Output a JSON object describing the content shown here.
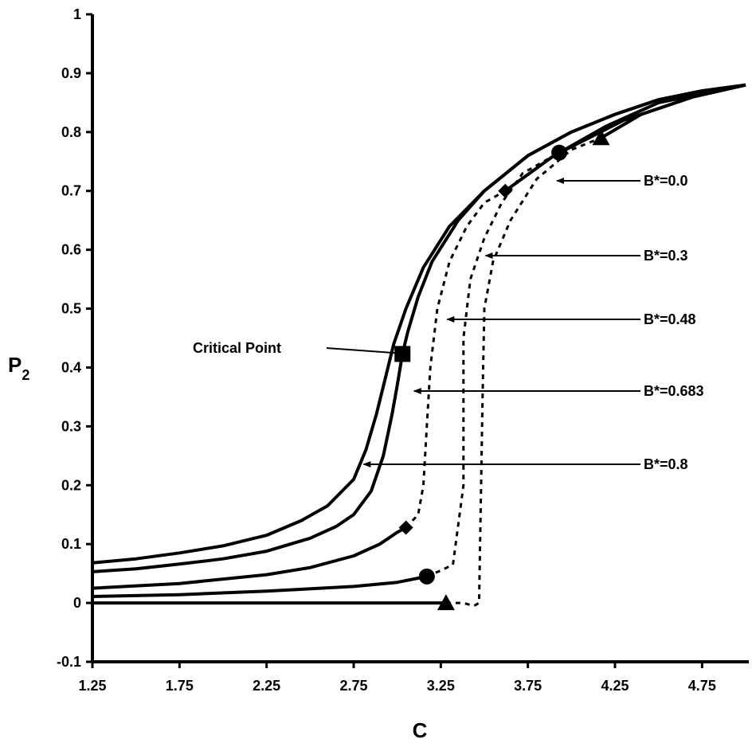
{
  "chart_data": {
    "type": "line",
    "title": "",
    "xlabel": "C",
    "ylabel_main": "P",
    "ylabel_sub": "2",
    "xlim": [
      1.25,
      5.0
    ],
    "ylim": [
      -0.1,
      1.0
    ],
    "xticks": [
      "1.25",
      "1.75",
      "2.25",
      "2.75",
      "3.25",
      "3.75",
      "4.25",
      "4.75"
    ],
    "xtick_values": [
      1.25,
      1.75,
      2.25,
      2.75,
      3.25,
      3.75,
      4.25,
      4.75
    ],
    "yticks": [
      "-0.1",
      "0",
      "0.1",
      "0.2",
      "0.3",
      "0.4",
      "0.5",
      "0.6",
      "0.7",
      "0.8",
      "0.9",
      "1"
    ],
    "ytick_values": [
      -0.1,
      0.0,
      0.1,
      0.2,
      0.3,
      0.4,
      0.5,
      0.6,
      0.7,
      0.8,
      0.9,
      1.0
    ],
    "grid": false,
    "series": [
      {
        "name": "B*=0.0",
        "marker": "triangle",
        "stable": [
          [
            1.25,
            0.0
          ],
          [
            3.28,
            0.0
          ]
        ],
        "unstable": [
          [
            3.28,
            0.0
          ],
          [
            3.38,
            0.0
          ],
          [
            3.44,
            -0.005
          ],
          [
            3.47,
            0.0
          ],
          [
            3.49,
            0.35
          ],
          [
            3.5,
            0.5
          ],
          [
            3.55,
            0.58
          ],
          [
            3.65,
            0.65
          ],
          [
            3.8,
            0.72
          ],
          [
            4.0,
            0.77
          ],
          [
            4.17,
            0.79
          ]
        ],
        "upper": [
          [
            4.17,
            0.79
          ],
          [
            4.4,
            0.83
          ],
          [
            4.7,
            0.86
          ],
          [
            5.0,
            0.88
          ]
        ],
        "marker_points": [
          [
            3.28,
            0.0
          ],
          [
            4.17,
            0.79
          ]
        ]
      },
      {
        "name": "B*=0.3",
        "marker": "circle",
        "stable": [
          [
            1.25,
            0.011
          ],
          [
            1.75,
            0.014
          ],
          [
            2.25,
            0.02
          ],
          [
            2.75,
            0.028
          ],
          [
            3.0,
            0.035
          ],
          [
            3.17,
            0.045
          ]
        ],
        "unstable": [
          [
            3.17,
            0.045
          ],
          [
            3.25,
            0.055
          ],
          [
            3.32,
            0.065
          ],
          [
            3.38,
            0.2
          ],
          [
            3.38,
            0.45
          ],
          [
            3.42,
            0.55
          ],
          [
            3.5,
            0.62
          ],
          [
            3.6,
            0.68
          ],
          [
            3.72,
            0.73
          ],
          [
            3.93,
            0.765
          ]
        ],
        "upper": [
          [
            3.93,
            0.765
          ],
          [
            4.2,
            0.81
          ],
          [
            4.5,
            0.85
          ],
          [
            5.0,
            0.88
          ]
        ],
        "marker_points": [
          [
            3.17,
            0.045
          ],
          [
            3.93,
            0.765
          ]
        ]
      },
      {
        "name": "B*=0.48",
        "marker": "diamond",
        "stable": [
          [
            1.25,
            0.025
          ],
          [
            1.75,
            0.033
          ],
          [
            2.25,
            0.048
          ],
          [
            2.5,
            0.06
          ],
          [
            2.75,
            0.08
          ],
          [
            2.9,
            0.1
          ],
          [
            3.0,
            0.12
          ],
          [
            3.05,
            0.128
          ]
        ],
        "unstable": [
          [
            3.05,
            0.128
          ],
          [
            3.12,
            0.15
          ],
          [
            3.15,
            0.2
          ],
          [
            3.17,
            0.3
          ],
          [
            3.19,
            0.4
          ],
          [
            3.23,
            0.5
          ],
          [
            3.3,
            0.58
          ],
          [
            3.4,
            0.64
          ],
          [
            3.5,
            0.68
          ],
          [
            3.62,
            0.7
          ]
        ],
        "upper": [
          [
            3.62,
            0.7
          ],
          [
            3.9,
            0.76
          ],
          [
            4.3,
            0.82
          ],
          [
            4.7,
            0.86
          ],
          [
            5.0,
            0.88
          ]
        ],
        "marker_points": [
          [
            3.05,
            0.128
          ],
          [
            3.62,
            0.7
          ]
        ]
      },
      {
        "name": "B*=0.683",
        "marker": "square",
        "curve": [
          [
            1.25,
            0.053
          ],
          [
            1.5,
            0.058
          ],
          [
            1.75,
            0.066
          ],
          [
            2.0,
            0.075
          ],
          [
            2.25,
            0.088
          ],
          [
            2.5,
            0.11
          ],
          [
            2.65,
            0.13
          ],
          [
            2.75,
            0.15
          ],
          [
            2.85,
            0.19
          ],
          [
            2.92,
            0.25
          ],
          [
            2.97,
            0.32
          ],
          [
            3.0,
            0.37
          ],
          [
            3.03,
            0.423
          ],
          [
            3.06,
            0.46
          ],
          [
            3.12,
            0.52
          ],
          [
            3.2,
            0.58
          ],
          [
            3.35,
            0.65
          ],
          [
            3.5,
            0.7
          ],
          [
            3.75,
            0.76
          ],
          [
            4.0,
            0.8
          ],
          [
            4.25,
            0.83
          ],
          [
            4.5,
            0.855
          ],
          [
            4.75,
            0.87
          ],
          [
            5.0,
            0.88
          ]
        ],
        "marker_points": [
          [
            3.03,
            0.423
          ]
        ]
      },
      {
        "name": "B*=0.8",
        "curve": [
          [
            1.25,
            0.068
          ],
          [
            1.5,
            0.075
          ],
          [
            1.75,
            0.085
          ],
          [
            2.0,
            0.097
          ],
          [
            2.25,
            0.115
          ],
          [
            2.45,
            0.14
          ],
          [
            2.6,
            0.165
          ],
          [
            2.75,
            0.21
          ],
          [
            2.82,
            0.26
          ],
          [
            2.88,
            0.32
          ],
          [
            2.93,
            0.38
          ],
          [
            2.98,
            0.44
          ],
          [
            3.05,
            0.5
          ],
          [
            3.15,
            0.57
          ],
          [
            3.3,
            0.64
          ],
          [
            3.5,
            0.7
          ],
          [
            3.75,
            0.76
          ],
          [
            4.0,
            0.8
          ],
          [
            4.25,
            0.83
          ],
          [
            4.5,
            0.855
          ],
          [
            4.75,
            0.87
          ],
          [
            5.0,
            0.88
          ]
        ]
      }
    ],
    "annotations": [
      {
        "label": "B*=0.0",
        "arrow_to": [
          3.88,
          0.7
        ]
      },
      {
        "label": "B*=0.3",
        "arrow_to": [
          3.47,
          0.575
        ]
      },
      {
        "label": "B*=0.48",
        "arrow_to": [
          3.25,
          0.465
        ]
      },
      {
        "label": "B*=0.683",
        "arrow_to": [
          3.06,
          0.355
        ]
      },
      {
        "label": "B*=0.8",
        "arrow_to": [
          2.77,
          0.225
        ]
      },
      {
        "label": "Critical Point",
        "arrow_to": [
          3.03,
          0.423
        ]
      }
    ]
  }
}
